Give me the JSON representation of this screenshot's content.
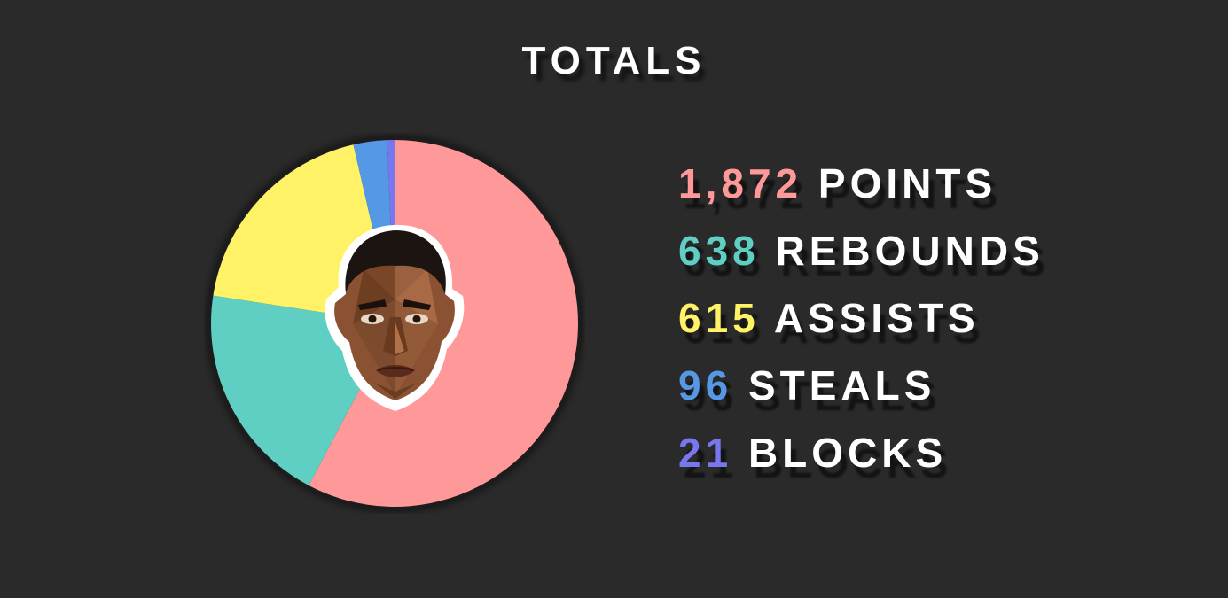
{
  "colors": {
    "background": "#2a2a2a",
    "points": "#ff9999",
    "rebounds": "#5ecfc2",
    "assists": "#fff266",
    "steals": "#5599e6",
    "blocks": "#7777ee"
  },
  "chart_data": {
    "type": "pie",
    "title": "TOTALS",
    "series": [
      {
        "name": "POINTS",
        "value": 1872,
        "display": "1,872",
        "color": "#ff9999"
      },
      {
        "name": "REBOUNDS",
        "value": 638,
        "display": "638",
        "color": "#5ecfc2"
      },
      {
        "name": "ASSISTS",
        "value": 615,
        "display": "615",
        "color": "#fff266"
      },
      {
        "name": "STEALS",
        "value": 96,
        "display": "96",
        "color": "#5599e6"
      },
      {
        "name": "BLOCKS",
        "value": 21,
        "display": "21",
        "color": "#7777ee"
      }
    ],
    "legend_position": "right",
    "center_image": "player-face-illustration"
  }
}
